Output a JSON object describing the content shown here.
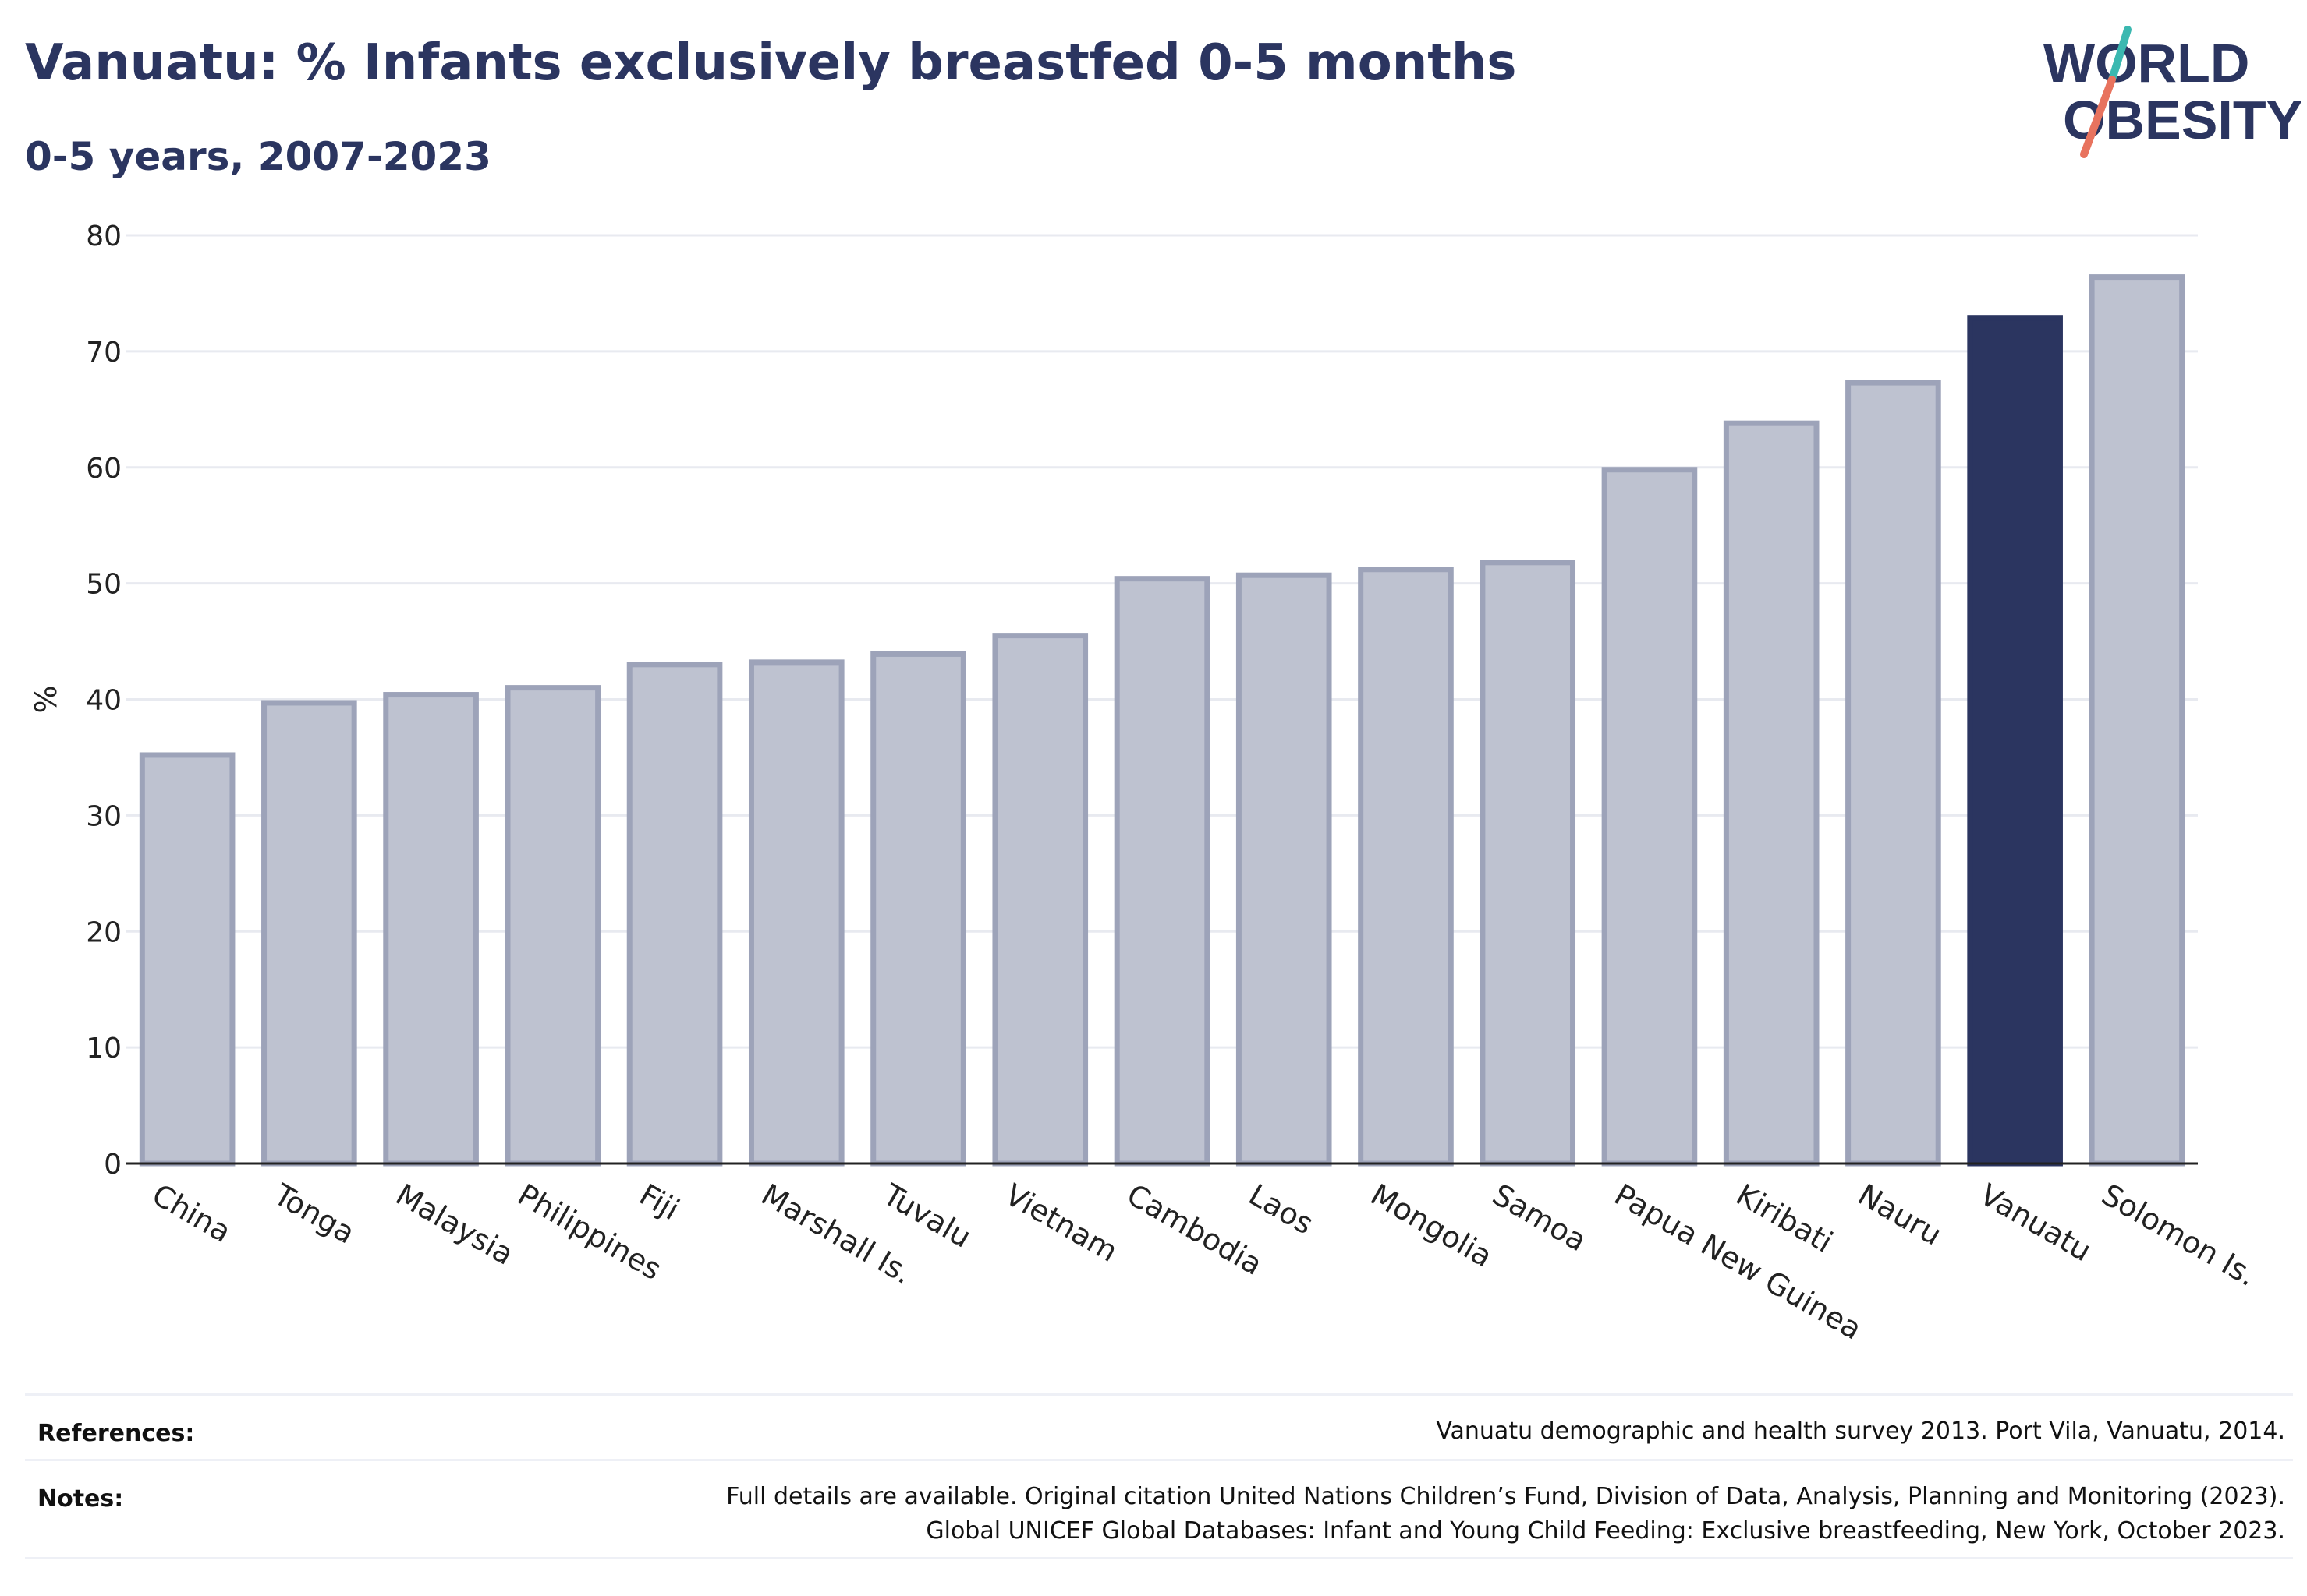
{
  "title": "Vanuatu: % Infants exclusively breastfed 0-5 months",
  "subtitle": "0-5 years, 2007-2023",
  "logo": {
    "line1": "WORLD",
    "line2": "OBESITY"
  },
  "colors": {
    "highlight": "#2b3560",
    "bar_fill": "#bec2d0",
    "bar_stroke": "#9da3b9",
    "grid": "#e8eaf0",
    "text": "#2b3560"
  },
  "chart_data": {
    "type": "bar",
    "ylabel": "%",
    "ylim": [
      0,
      80
    ],
    "yticks": [
      0,
      10,
      20,
      30,
      40,
      50,
      60,
      70,
      80
    ],
    "grid": true,
    "highlight": "Vanuatu",
    "categories": [
      "China",
      "Tonga",
      "Malaysia",
      "Philippines",
      "Fiji",
      "Marshall Is.",
      "Tuvalu",
      "Vietnam",
      "Cambodia",
      "Laos",
      "Mongolia",
      "Samoa",
      "Papua New Guinea",
      "Kiribati",
      "Nauru",
      "Vanuatu",
      "Solomon Is."
    ],
    "values": [
      35.2,
      39.7,
      40.4,
      41.0,
      43.0,
      43.2,
      43.9,
      45.5,
      50.4,
      50.7,
      51.2,
      51.8,
      59.8,
      63.8,
      67.3,
      72.9,
      76.4
    ]
  },
  "footer": {
    "references_label": "References:",
    "references_text": "Vanuatu demographic and health survey 2013. Port Vila, Vanuatu, 2014.",
    "notes_label": "Notes:",
    "notes_line1": "Full details are available. Original citation United Nations Children’s Fund, Division of Data, Analysis, Planning and Monitoring (2023).",
    "notes_line2": "Global UNICEF Global Databases: Infant and Young Child Feeding: Exclusive breastfeeding, New York, October 2023."
  }
}
